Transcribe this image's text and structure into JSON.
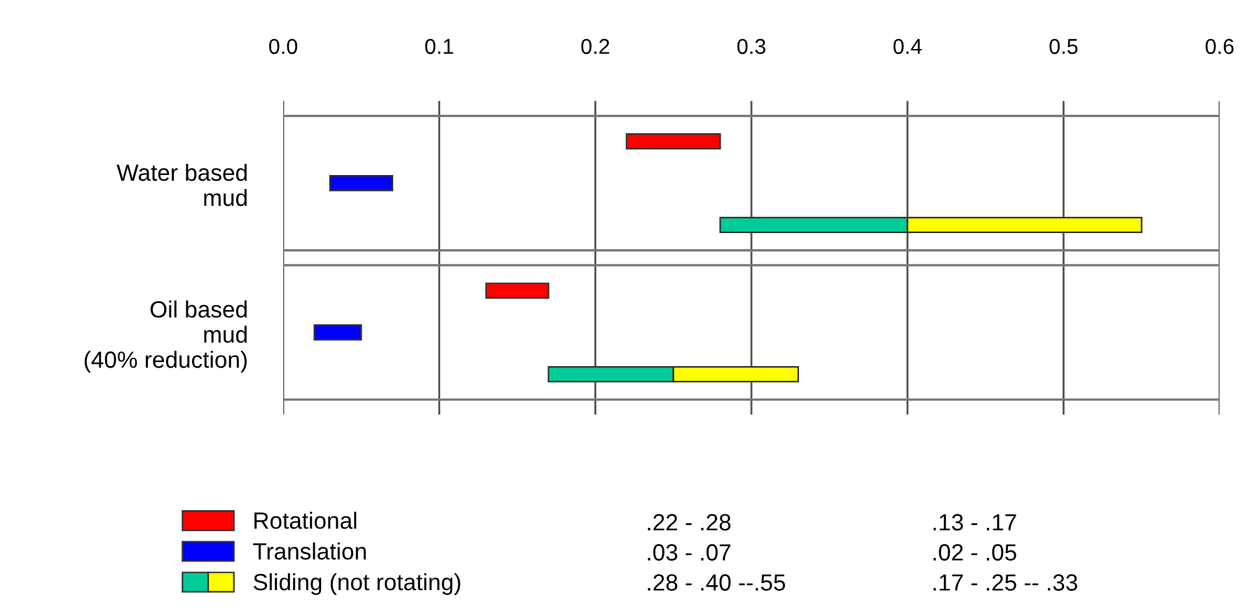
{
  "chart_data": {
    "type": "bar",
    "orientation": "horizontal",
    "categories": [
      "Water based\nmud",
      "Oil based\nmud\n(40% reduction)"
    ],
    "series": [
      {
        "name": "Rotational",
        "color": "#ff0000",
        "base": [
          0.22,
          0.13
        ],
        "values": [
          0.06,
          0.04
        ]
      },
      {
        "name": "Translation",
        "color": "#0000ff",
        "base": [
          0.03,
          0.02
        ],
        "values": [
          0.04,
          0.03
        ]
      },
      {
        "name": "Sliding (not rotating)",
        "color": "#00cc99",
        "base": [
          0.28,
          0.17
        ],
        "values": [
          0.12,
          0.08
        ]
      },
      {
        "color": "#ffff00",
        "base": [
          0.4,
          0.25
        ],
        "values": [
          0.15,
          0.08
        ]
      }
    ],
    "xlim": [
      0,
      0.6
    ],
    "xticks": [
      {
        "value": 0,
        "label": "0.0"
      },
      0.1,
      0.2,
      0.3,
      0.4,
      0.5,
      0.6
    ],
    "grid": "x",
    "legend": "bottom",
    "annotations": [
      ".22 - .28",
      ".13 - .17",
      ".03 - .07",
      ".02 - .05",
      ".28 - .40 --.55",
      ".17 - .25 -- .33"
    ]
  }
}
